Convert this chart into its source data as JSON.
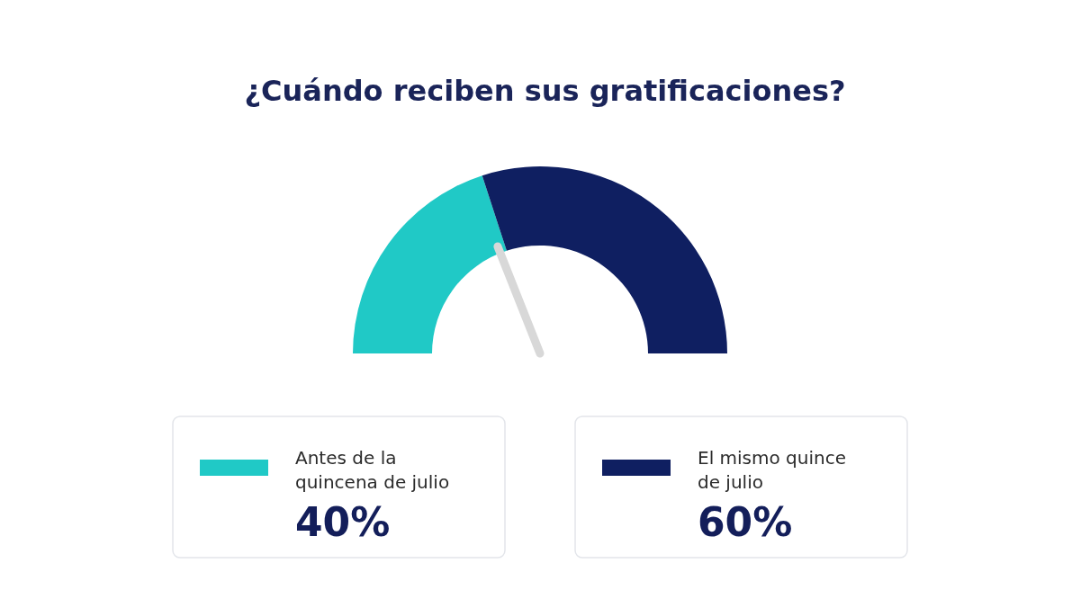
{
  "chart_data": {
    "type": "donut",
    "title": "¿Cuándo reciben sus gratificaciones?",
    "categories": [
      "Antes de la quincena de julio",
      "El mismo quince de julio"
    ],
    "values": [
      40,
      60
    ],
    "colors": [
      "#20c9c6",
      "#0f1f61"
    ],
    "value_labels": [
      "40%",
      "60%"
    ],
    "needle": "Antes de la quincena de julio",
    "legend": "bottom"
  }
}
